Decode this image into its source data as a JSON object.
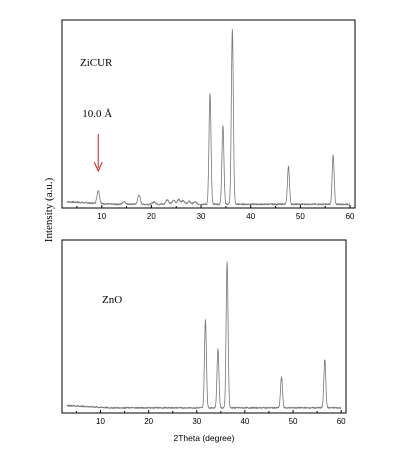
{
  "chart_data": {
    "type": "line",
    "ylabel": "Intensity (a.u.)",
    "xlabel": "2Theta (degree)",
    "xlim": [
      2,
      61
    ],
    "xticks": [
      10,
      20,
      30,
      40,
      50,
      60
    ],
    "line_color": "#777777",
    "grid": false,
    "panels": [
      {
        "sample_label": "ZiCUR",
        "show_xlabel": false,
        "ylim": [
          0,
          100
        ],
        "baseline": 2,
        "peaks": [
          {
            "x": 9.3,
            "height": 7,
            "width": 0.25
          },
          {
            "x": 14.5,
            "height": 1.5,
            "width": 0.3
          },
          {
            "x": 17.5,
            "height": 5,
            "width": 0.25
          },
          {
            "x": 20.5,
            "height": 1.2,
            "width": 0.3
          },
          {
            "x": 23.2,
            "height": 2.5,
            "width": 0.3
          },
          {
            "x": 24.5,
            "height": 2,
            "width": 0.3
          },
          {
            "x": 25.5,
            "height": 2.5,
            "width": 0.3
          },
          {
            "x": 26.4,
            "height": 2,
            "width": 0.3
          },
          {
            "x": 27.6,
            "height": 1.5,
            "width": 0.3
          },
          {
            "x": 28.8,
            "height": 1.2,
            "width": 0.3
          },
          {
            "x": 31.8,
            "height": 59,
            "width": 0.2
          },
          {
            "x": 34.4,
            "height": 42,
            "width": 0.2
          },
          {
            "x": 36.3,
            "height": 93,
            "width": 0.2
          },
          {
            "x": 47.6,
            "height": 20,
            "width": 0.2
          },
          {
            "x": 56.6,
            "height": 26,
            "width": 0.2
          }
        ],
        "annotation": {
          "text": "10.0 Å",
          "x": 9.3
        }
      },
      {
        "sample_label": "ZnO",
        "show_xlabel": true,
        "ylim": [
          0,
          100
        ],
        "baseline": 3,
        "peaks": [
          {
            "x": 31.8,
            "height": 51,
            "width": 0.2
          },
          {
            "x": 34.4,
            "height": 34,
            "width": 0.2
          },
          {
            "x": 36.3,
            "height": 84,
            "width": 0.2
          },
          {
            "x": 47.6,
            "height": 18,
            "width": 0.2
          },
          {
            "x": 56.6,
            "height": 28,
            "width": 0.2
          }
        ]
      }
    ]
  }
}
